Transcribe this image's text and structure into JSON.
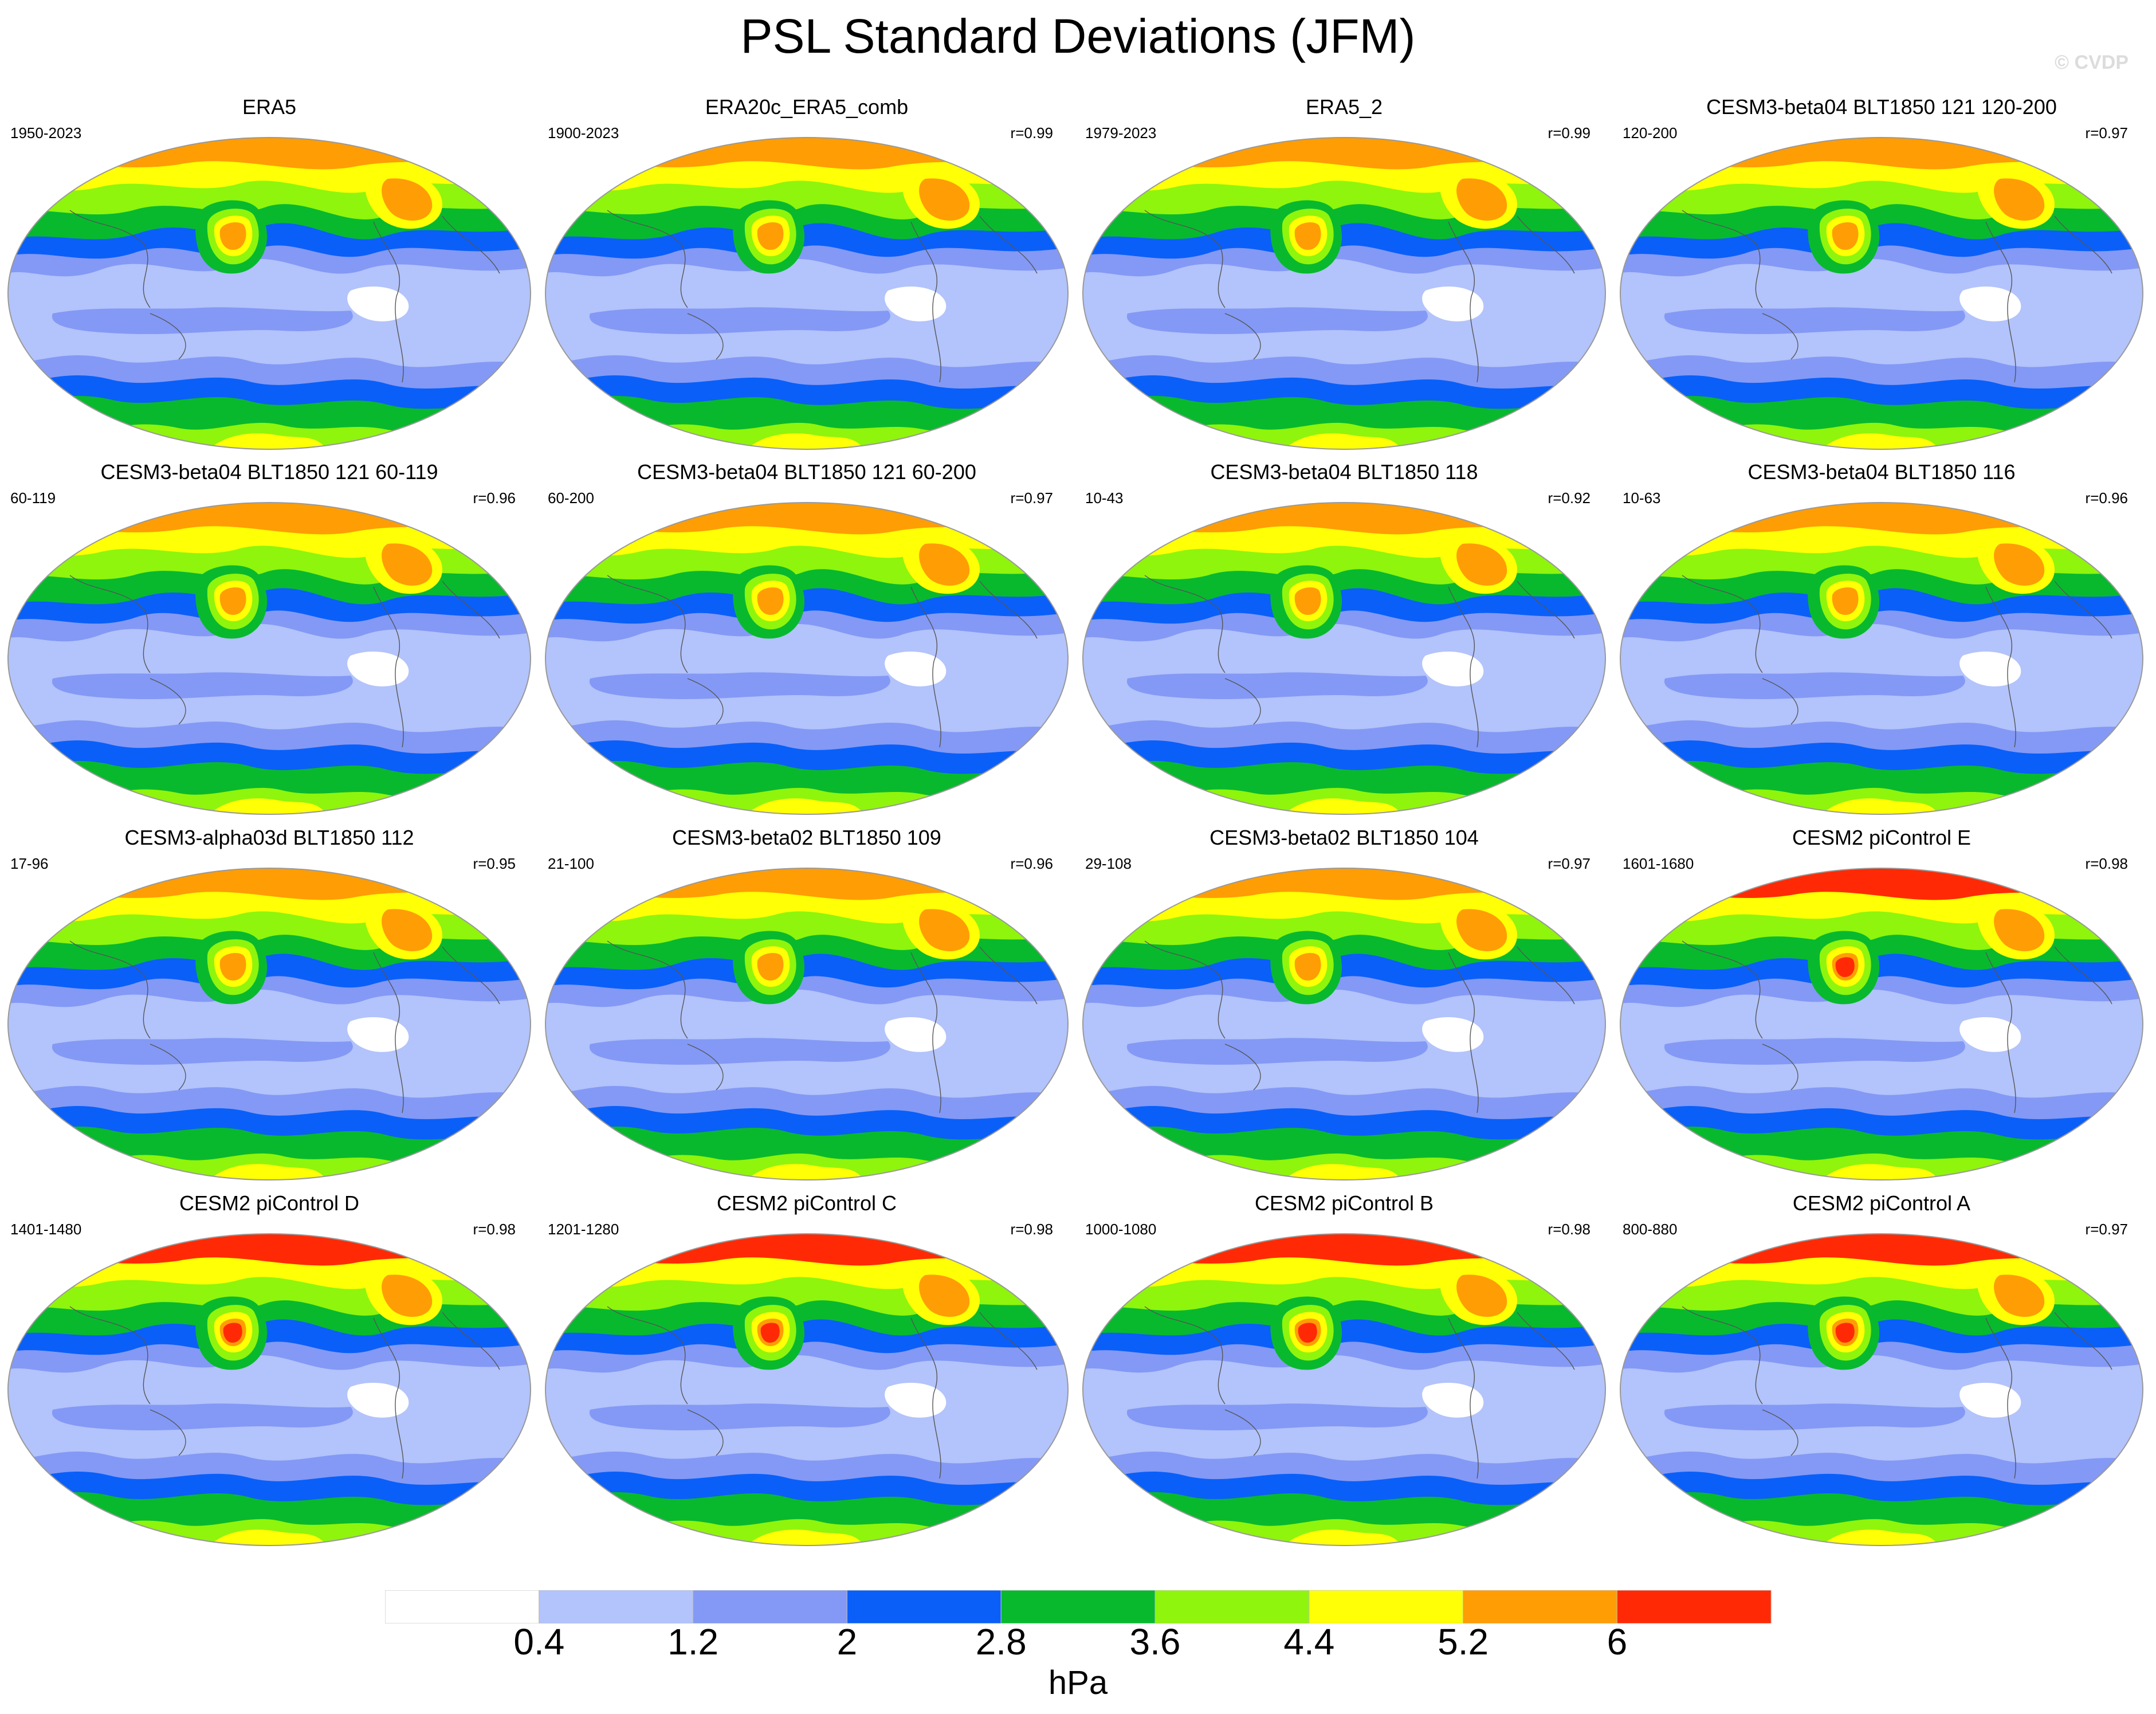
{
  "title": "PSL Standard Deviations (JFM)",
  "watermark": "© CVDP",
  "colorbar": {
    "colors": [
      "#ffffff",
      "#b3c3fb",
      "#8399f5",
      "#0a5ff8",
      "#08b92e",
      "#8ff50c",
      "#ffff05",
      "#ff9d05",
      "#ff2a05"
    ],
    "labels": [
      "0.4",
      "1.2",
      "2",
      "2.8",
      "3.6",
      "4.4",
      "5.2",
      "6"
    ],
    "units": "hPa"
  },
  "panels": [
    {
      "title": "ERA5",
      "years": "1950-2023",
      "corr": ""
    },
    {
      "title": "ERA20c_ERA5_comb",
      "years": "1900-2023",
      "corr": "r=0.99"
    },
    {
      "title": "ERA5_2",
      "years": "1979-2023",
      "corr": "r=0.99"
    },
    {
      "title": "CESM3-beta04 BLT1850 121 120-200",
      "years": "120-200",
      "corr": "r=0.97"
    },
    {
      "title": "CESM3-beta04 BLT1850 121 60-119",
      "years": "60-119",
      "corr": "r=0.96"
    },
    {
      "title": "CESM3-beta04 BLT1850 121 60-200",
      "years": "60-200",
      "corr": "r=0.97"
    },
    {
      "title": "CESM3-beta04 BLT1850 118",
      "years": "10-43",
      "corr": "r=0.92"
    },
    {
      "title": "CESM3-beta04 BLT1850 116",
      "years": "10-63",
      "corr": "r=0.96"
    },
    {
      "title": "CESM3-alpha03d BLT1850 112",
      "years": "17-96",
      "corr": "r=0.95"
    },
    {
      "title": "CESM3-beta02 BLT1850 109",
      "years": "21-100",
      "corr": "r=0.96"
    },
    {
      "title": "CESM3-beta02 BLT1850 104",
      "years": "29-108",
      "corr": "r=0.97"
    },
    {
      "title": "CESM2 piControl E",
      "years": "1601-1680",
      "corr": "r=0.98"
    },
    {
      "title": "CESM2 piControl D",
      "years": "1401-1480",
      "corr": "r=0.98"
    },
    {
      "title": "CESM2 piControl C",
      "years": "1201-1280",
      "corr": "r=0.98"
    },
    {
      "title": "CESM2 piControl B",
      "years": "1000-1080",
      "corr": "r=0.98"
    },
    {
      "title": "CESM2 piControl A",
      "years": "800-880",
      "corr": "r=0.97"
    }
  ]
}
